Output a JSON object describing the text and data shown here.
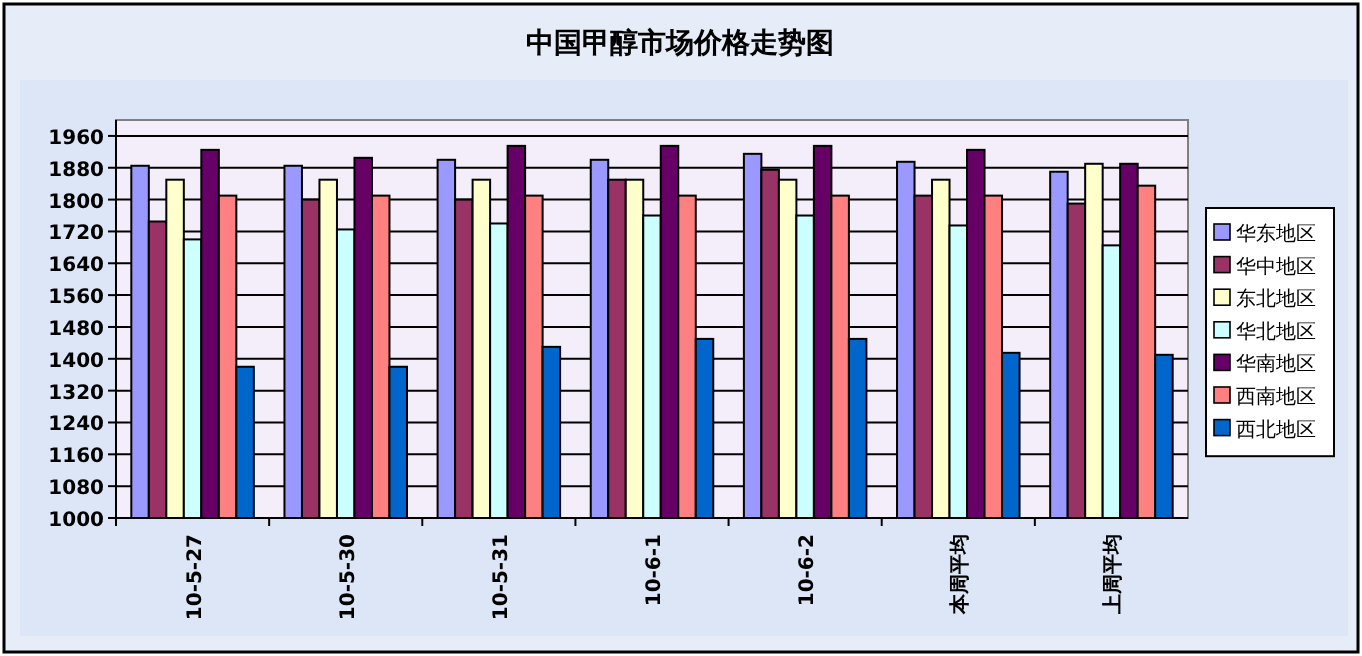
{
  "chart_data": {
    "type": "bar",
    "title": "中国甲醇市场价格走势图",
    "categories": [
      "10-5-27",
      "10-5-30",
      "10-5-31",
      "10-6-1",
      "10-6-2",
      "本周平均",
      "上周平均"
    ],
    "series": [
      {
        "name": "华东地区",
        "color": "#9999ff",
        "values": [
          1885,
          1885,
          1900,
          1900,
          1915,
          1895,
          1870
        ]
      },
      {
        "name": "华中地区",
        "color": "#993366",
        "values": [
          1745,
          1800,
          1800,
          1850,
          1875,
          1810,
          1790
        ]
      },
      {
        "name": "东北地区",
        "color": "#ffffcc",
        "values": [
          1850,
          1850,
          1850,
          1850,
          1850,
          1850,
          1890
        ]
      },
      {
        "name": "华北地区",
        "color": "#ccffff",
        "values": [
          1700,
          1725,
          1740,
          1760,
          1760,
          1735,
          1685
        ]
      },
      {
        "name": "华南地区",
        "color": "#660066",
        "values": [
          1925,
          1905,
          1935,
          1935,
          1935,
          1925,
          1890
        ]
      },
      {
        "name": "西南地区",
        "color": "#ff8080",
        "values": [
          1810,
          1810,
          1810,
          1810,
          1810,
          1810,
          1835
        ]
      },
      {
        "name": "西北地区",
        "color": "#0066cc",
        "values": [
          1380,
          1380,
          1430,
          1450,
          1450,
          1415,
          1410
        ]
      }
    ],
    "ylim": [
      1000,
      2000
    ],
    "yticks": [
      1000,
      1080,
      1160,
      1240,
      1320,
      1400,
      1480,
      1560,
      1640,
      1720,
      1800,
      1880,
      1960
    ],
    "grid": "y",
    "legend": "right"
  }
}
